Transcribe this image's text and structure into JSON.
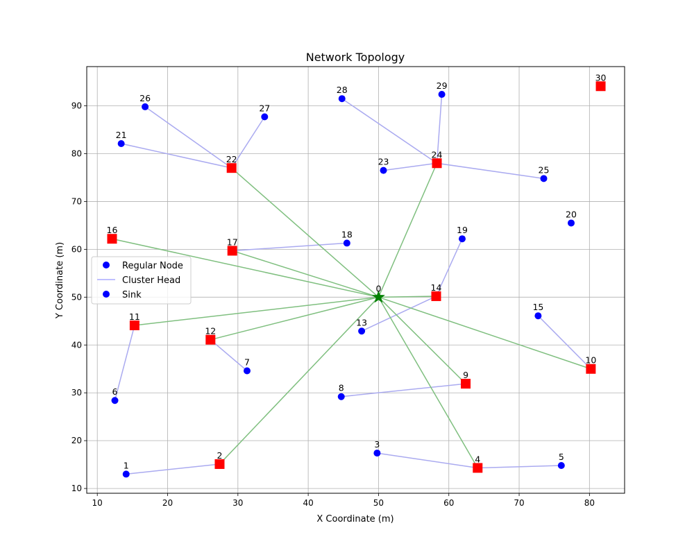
{
  "chart_data": {
    "type": "scatter",
    "title": "Network Topology",
    "xlabel": "X Coordinate (m)",
    "ylabel": "Y Coordinate (m)",
    "xlim": [
      8.5,
      85
    ],
    "ylim": [
      9,
      98.2
    ],
    "xticks": [
      10,
      20,
      30,
      40,
      50,
      60,
      70,
      80
    ],
    "yticks": [
      10,
      20,
      30,
      40,
      50,
      60,
      70,
      80,
      90
    ],
    "grid": true,
    "legend": {
      "placement": "center-left",
      "entries": [
        {
          "label": "Regular Node",
          "marker": "circle",
          "color": "#0000ff"
        },
        {
          "label": "Cluster Head",
          "marker": "line",
          "color": "#aaaaff"
        },
        {
          "label": "Sink",
          "marker": "circle",
          "color": "#0000ff"
        }
      ]
    },
    "colors": {
      "regular": "#0000ff",
      "cluster_head": "#ff0000",
      "sink": "#008000",
      "member_link": "#aaaaf0",
      "sink_link": "#7fbf7f",
      "grid": "#b0b0b0"
    },
    "nodes": [
      {
        "id": "0",
        "x": 50.0,
        "y": 50.0,
        "type": "sink"
      },
      {
        "id": "1",
        "x": 14.1,
        "y": 13.0,
        "type": "regular"
      },
      {
        "id": "2",
        "x": 27.4,
        "y": 15.1,
        "type": "cluster_head"
      },
      {
        "id": "3",
        "x": 49.8,
        "y": 17.4,
        "type": "regular"
      },
      {
        "id": "4",
        "x": 64.1,
        "y": 14.3,
        "type": "cluster_head"
      },
      {
        "id": "5",
        "x": 76.0,
        "y": 14.8,
        "type": "regular"
      },
      {
        "id": "6",
        "x": 12.5,
        "y": 28.4,
        "type": "regular"
      },
      {
        "id": "7",
        "x": 31.3,
        "y": 34.6,
        "type": "regular"
      },
      {
        "id": "8",
        "x": 44.7,
        "y": 29.2,
        "type": "regular"
      },
      {
        "id": "9",
        "x": 62.4,
        "y": 31.9,
        "type": "cluster_head"
      },
      {
        "id": "10",
        "x": 80.2,
        "y": 35.0,
        "type": "cluster_head"
      },
      {
        "id": "11",
        "x": 15.3,
        "y": 44.1,
        "type": "cluster_head"
      },
      {
        "id": "12",
        "x": 26.1,
        "y": 41.1,
        "type": "cluster_head"
      },
      {
        "id": "13",
        "x": 47.6,
        "y": 42.9,
        "type": "regular"
      },
      {
        "id": "14",
        "x": 58.2,
        "y": 50.2,
        "type": "cluster_head"
      },
      {
        "id": "15",
        "x": 72.7,
        "y": 46.1,
        "type": "regular"
      },
      {
        "id": "16",
        "x": 12.1,
        "y": 62.2,
        "type": "cluster_head"
      },
      {
        "id": "17",
        "x": 29.2,
        "y": 59.7,
        "type": "cluster_head"
      },
      {
        "id": "18",
        "x": 45.5,
        "y": 61.3,
        "type": "regular"
      },
      {
        "id": "19",
        "x": 61.9,
        "y": 62.2,
        "type": "regular"
      },
      {
        "id": "20",
        "x": 77.4,
        "y": 65.5,
        "type": "regular"
      },
      {
        "id": "21",
        "x": 13.4,
        "y": 82.1,
        "type": "regular"
      },
      {
        "id": "22",
        "x": 29.1,
        "y": 77.0,
        "type": "cluster_head"
      },
      {
        "id": "23",
        "x": 50.7,
        "y": 76.5,
        "type": "regular"
      },
      {
        "id": "24",
        "x": 58.3,
        "y": 78.0,
        "type": "cluster_head"
      },
      {
        "id": "25",
        "x": 73.5,
        "y": 74.8,
        "type": "regular"
      },
      {
        "id": "26",
        "x": 16.8,
        "y": 89.8,
        "type": "regular"
      },
      {
        "id": "27",
        "x": 33.8,
        "y": 87.7,
        "type": "regular"
      },
      {
        "id": "28",
        "x": 44.8,
        "y": 91.5,
        "type": "regular"
      },
      {
        "id": "29",
        "x": 59.0,
        "y": 92.4,
        "type": "regular"
      },
      {
        "id": "30",
        "x": 81.6,
        "y": 94.1,
        "type": "cluster_head"
      }
    ],
    "member_links": [
      [
        "1",
        "2"
      ],
      [
        "3",
        "4"
      ],
      [
        "5",
        "4"
      ],
      [
        "6",
        "11"
      ],
      [
        "7",
        "12"
      ],
      [
        "8",
        "9"
      ],
      [
        "13",
        "14"
      ],
      [
        "19",
        "14"
      ],
      [
        "15",
        "10"
      ],
      [
        "18",
        "17"
      ],
      [
        "21",
        "22"
      ],
      [
        "26",
        "22"
      ],
      [
        "27",
        "22"
      ],
      [
        "23",
        "24"
      ],
      [
        "28",
        "24"
      ],
      [
        "29",
        "24"
      ],
      [
        "25",
        "24"
      ]
    ],
    "sink_links": [
      [
        "2",
        "0"
      ],
      [
        "4",
        "0"
      ],
      [
        "9",
        "0"
      ],
      [
        "10",
        "0"
      ],
      [
        "11",
        "0"
      ],
      [
        "12",
        "0"
      ],
      [
        "14",
        "0"
      ],
      [
        "16",
        "0"
      ],
      [
        "17",
        "0"
      ],
      [
        "22",
        "0"
      ],
      [
        "24",
        "0"
      ]
    ]
  }
}
